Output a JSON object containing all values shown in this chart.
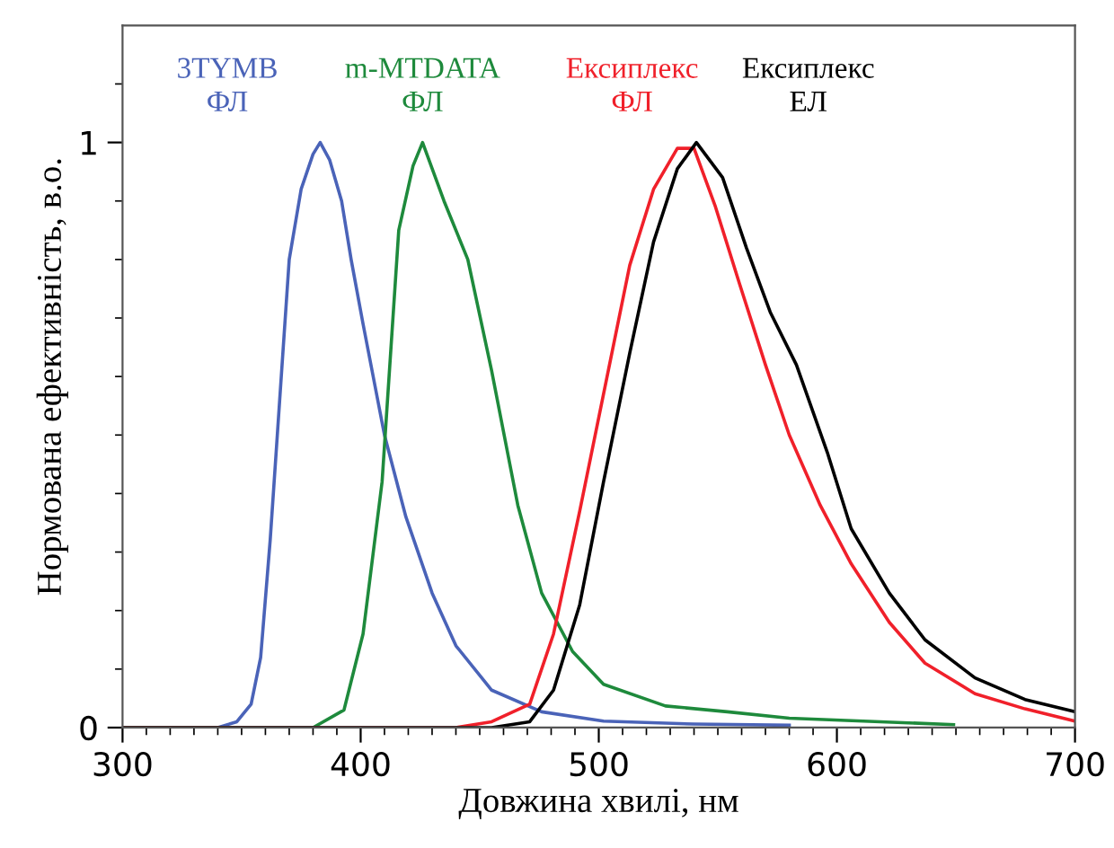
{
  "chart_data": {
    "type": "line",
    "xlabel": "Довжина хвилі, нм",
    "ylabel": "Нормована ефективність, в.о.",
    "xlim": [
      300,
      700
    ],
    "ylim": [
      0,
      1.2
    ],
    "xticks": [
      300,
      400,
      500,
      600,
      700,
      {
        "value": 310,
        "label": null
      },
      {
        "value": 320,
        "label": null
      },
      {
        "value": 330,
        "label": null
      },
      {
        "value": 340,
        "label": null
      },
      {
        "value": 350,
        "label": null
      },
      {
        "value": 360,
        "label": null
      },
      {
        "value": 370,
        "label": null
      },
      {
        "value": 380,
        "label": null
      },
      {
        "value": 390,
        "label": null
      },
      {
        "value": 410,
        "label": null
      },
      {
        "value": 420,
        "label": null
      },
      {
        "value": 430,
        "label": null
      },
      {
        "value": 440,
        "label": null
      },
      {
        "value": 450,
        "label": null
      },
      {
        "value": 460,
        "label": null
      },
      {
        "value": 470,
        "label": null
      },
      {
        "value": 480,
        "label": null
      },
      {
        "value": 490,
        "label": null
      },
      {
        "value": 510,
        "label": null
      },
      {
        "value": 520,
        "label": null
      },
      {
        "value": 530,
        "label": null
      },
      {
        "value": 540,
        "label": null
      },
      {
        "value": 550,
        "label": null
      },
      {
        "value": 560,
        "label": null
      },
      {
        "value": 570,
        "label": null
      },
      {
        "value": 580,
        "label": null
      },
      {
        "value": 590,
        "label": null
      },
      {
        "value": 610,
        "label": null
      },
      {
        "value": 620,
        "label": null
      },
      {
        "value": 630,
        "label": null
      },
      {
        "value": 640,
        "label": null
      },
      {
        "value": 650,
        "label": null
      },
      {
        "value": 660,
        "label": null
      },
      {
        "value": 670,
        "label": null
      },
      {
        "value": 680,
        "label": null
      },
      {
        "value": 690,
        "label": null
      }
    ],
    "yticks": [
      0,
      1,
      {
        "value": 0.1,
        "label": null
      },
      {
        "value": 0.2,
        "label": null
      },
      {
        "value": 0.3,
        "label": null
      },
      {
        "value": 0.4,
        "label": null
      },
      {
        "value": 0.5,
        "label": null
      },
      {
        "value": 0.6,
        "label": null
      },
      {
        "value": 0.7,
        "label": null
      },
      {
        "value": 0.8,
        "label": null
      },
      {
        "value": 0.9,
        "label": null
      },
      {
        "value": 1.1,
        "label": null
      }
    ],
    "grid": false,
    "marker": "none",
    "line_style": "solid",
    "series": [
      {
        "name": "3TYMB\nФЛ",
        "color": "#4a63b8",
        "x": [
          300,
          340,
          348,
          354,
          358,
          362,
          366,
          370,
          375,
          380,
          383,
          387,
          392,
          396,
          401,
          410,
          419,
          430,
          440,
          455,
          476,
          502,
          540,
          580
        ],
        "values": [
          0,
          0,
          0.01,
          0.04,
          0.12,
          0.32,
          0.56,
          0.8,
          0.92,
          0.98,
          1.0,
          0.97,
          0.9,
          0.8,
          0.69,
          0.5,
          0.36,
          0.23,
          0.14,
          0.064,
          0.027,
          0.011,
          0.006,
          0.004
        ]
      },
      {
        "name": "m-MTDATA\nФЛ",
        "color": "#1e8a3c",
        "x": [
          300,
          380,
          393,
          401,
          409,
          416,
          422,
          426,
          435,
          445,
          455,
          466,
          476,
          489,
          502,
          528,
          554,
          580,
          649
        ],
        "values": [
          0,
          0,
          0.03,
          0.16,
          0.42,
          0.85,
          0.96,
          1.0,
          0.9,
          0.8,
          0.61,
          0.38,
          0.23,
          0.13,
          0.074,
          0.037,
          0.027,
          0.016,
          0.005
        ]
      },
      {
        "name": "Ексиплекс\nФЛ",
        "color": "#f0202a",
        "x": [
          300,
          440,
          455,
          471,
          481,
          492,
          502,
          513,
          523,
          533,
          540,
          549,
          559,
          570,
          580,
          593,
          606,
          622,
          637,
          658,
          679,
          700
        ],
        "values": [
          0,
          0,
          0.01,
          0.04,
          0.16,
          0.37,
          0.57,
          0.79,
          0.92,
          0.99,
          0.99,
          0.89,
          0.76,
          0.62,
          0.5,
          0.38,
          0.28,
          0.18,
          0.11,
          0.058,
          0.032,
          0.011
        ]
      },
      {
        "name": "Ексиплекс\nЕЛ",
        "color": "#000000",
        "x": [
          300,
          455,
          471,
          481,
          492,
          502,
          513,
          523,
          533,
          541,
          552,
          562,
          572,
          583,
          596,
          606,
          622,
          637,
          658,
          679,
          700
        ],
        "values": [
          0,
          0,
          0.01,
          0.064,
          0.21,
          0.42,
          0.64,
          0.83,
          0.955,
          1.0,
          0.94,
          0.82,
          0.71,
          0.62,
          0.47,
          0.34,
          0.23,
          0.15,
          0.085,
          0.048,
          0.027
        ]
      }
    ]
  }
}
